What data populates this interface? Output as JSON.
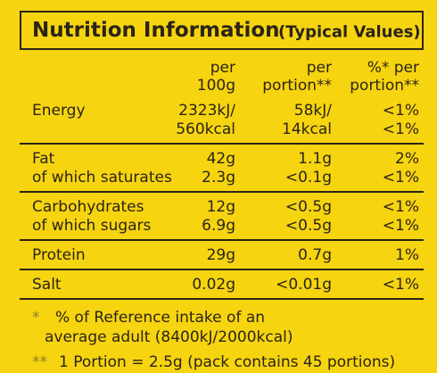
{
  "header": {
    "title": "Nutrition Information",
    "subtitle": "(Typical Values)"
  },
  "table": {
    "columns": [
      [
        "per",
        "100g"
      ],
      [
        "per",
        "portion**"
      ],
      [
        "%* per",
        "portion**"
      ]
    ],
    "groups": [
      [
        [
          "Energy",
          "2323kJ/",
          "58kJ/",
          "<1%"
        ],
        [
          null,
          "560kcal",
          "14kcal",
          "<1%"
        ]
      ],
      [
        [
          "Fat",
          "42g",
          "1.1g",
          "2%"
        ],
        [
          "of which saturates",
          "2.3g",
          "<0.1g",
          "<1%"
        ]
      ],
      [
        [
          "Carbohydrates",
          "12g",
          "<0.5g",
          "<1%"
        ],
        [
          "of which sugars",
          "6.9g",
          "<0.5g",
          "<1%"
        ]
      ],
      [
        [
          "Protein",
          "29g",
          "0.7g",
          "1%"
        ]
      ],
      [
        [
          "Salt",
          "0.02g",
          "<0.01g",
          "<1%"
        ]
      ]
    ]
  },
  "footnotes": [
    {
      "mark": "*",
      "lines": [
        "% of Reference intake of an",
        "average adult (8400kJ/2000kcal)"
      ]
    },
    {
      "mark": "**",
      "lines": [
        "1 Portion = 2.5g (pack contains 45 portions)"
      ]
    }
  ]
}
